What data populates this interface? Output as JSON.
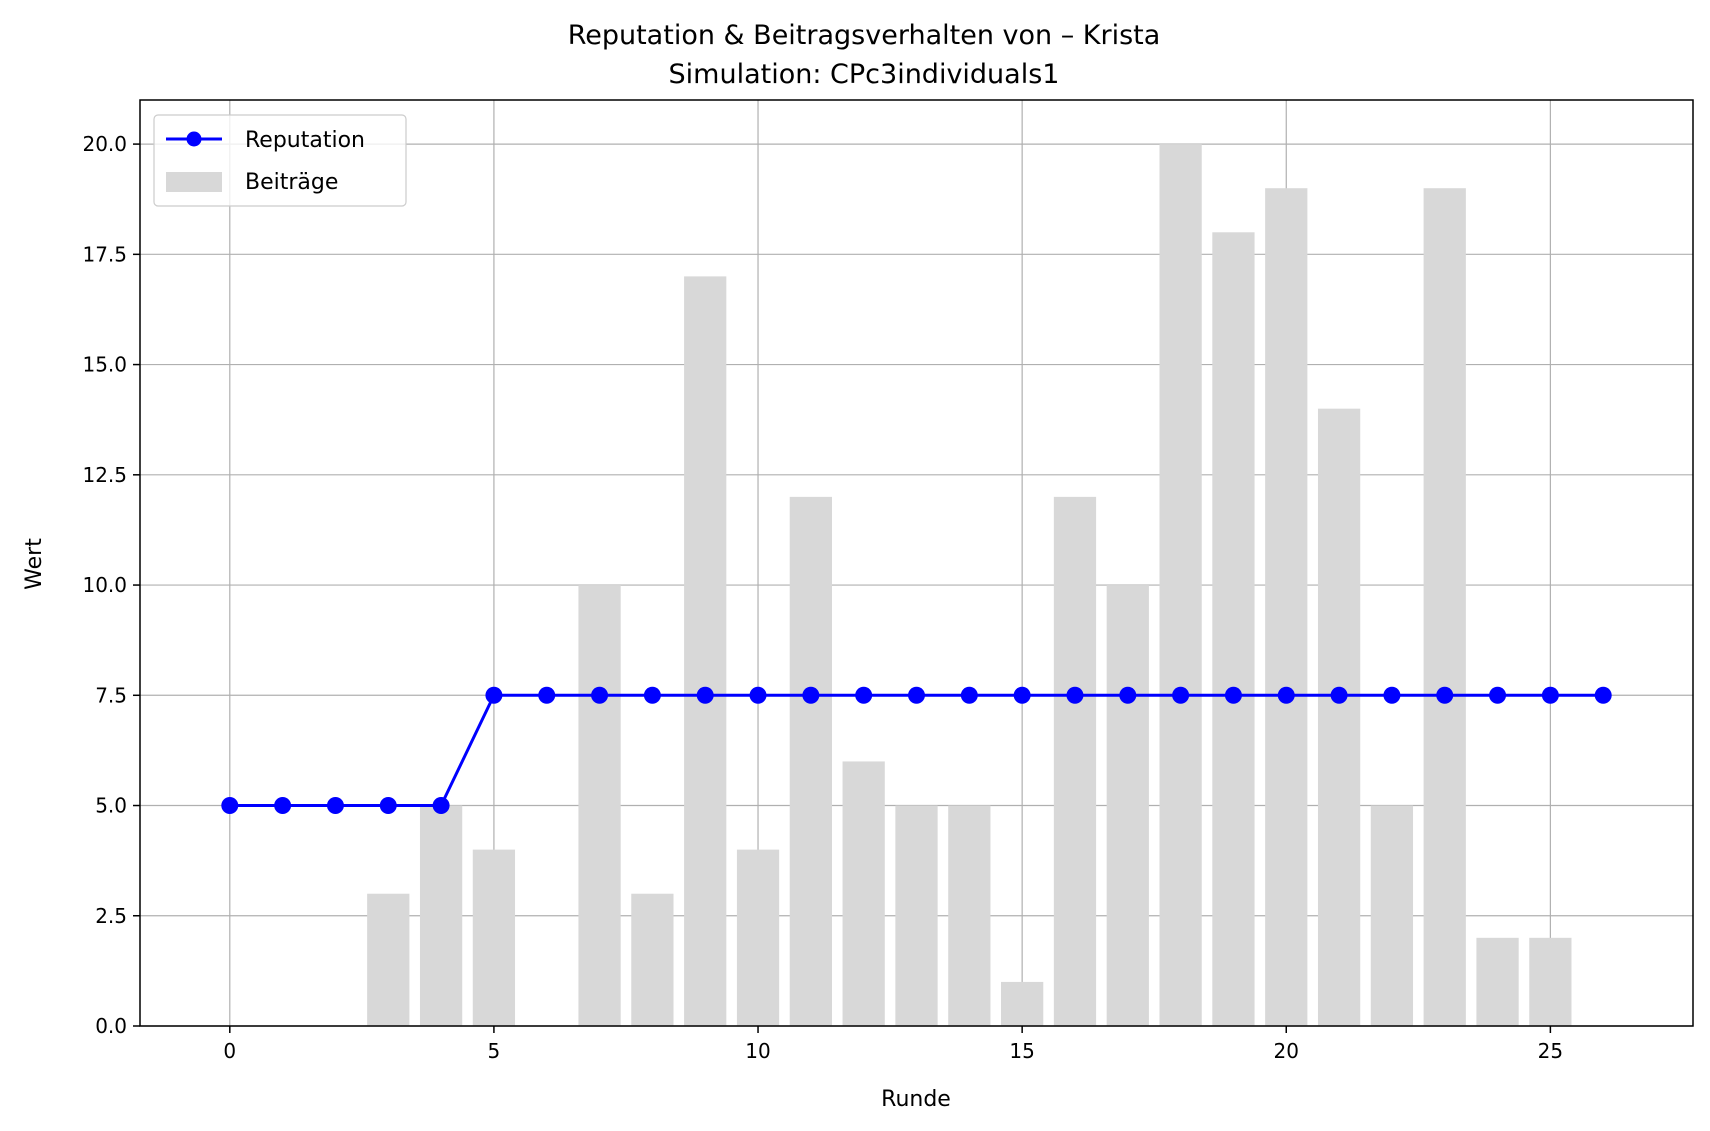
{
  "chart_data": {
    "type": "bar+line",
    "title": "Reputation & Beitragsverhalten von – Krista",
    "subtitle": "Simulation: CPc3individuals1",
    "xlabel": "Runde",
    "ylabel": "Wert",
    "xlim": [
      -1.7,
      27.7
    ],
    "ylim": [
      0,
      21
    ],
    "xticks": [
      0,
      5,
      10,
      15,
      20,
      25
    ],
    "yticks": [
      0,
      2.5,
      5,
      7.5,
      10,
      12.5,
      15,
      17.5,
      20
    ],
    "xtick_labels": [
      "0",
      "5",
      "10",
      "15",
      "20",
      "25"
    ],
    "ytick_labels": [
      "0.0",
      "2.5",
      "5.0",
      "7.5",
      "10.0",
      "12.5",
      "15.0",
      "17.5",
      "20.0"
    ],
    "grid": true,
    "legend_position": "top-left",
    "bars": {
      "name": "Beiträge",
      "color": "#d8d8d8",
      "x": [
        0,
        1,
        2,
        3,
        4,
        5,
        6,
        7,
        8,
        9,
        10,
        11,
        12,
        13,
        14,
        15,
        16,
        17,
        18,
        19,
        20,
        21,
        22,
        23,
        24,
        25,
        26
      ],
      "values": [
        0,
        0,
        0,
        3,
        5,
        4,
        0,
        10,
        3,
        17,
        4,
        12,
        6,
        5,
        5,
        1,
        12,
        10,
        20,
        18,
        19,
        14,
        5,
        19,
        2,
        2,
        0
      ]
    },
    "line": {
      "name": "Reputation",
      "color": "#0000ff",
      "x": [
        0,
        1,
        2,
        3,
        4,
        5,
        6,
        7,
        8,
        9,
        10,
        11,
        12,
        13,
        14,
        15,
        16,
        17,
        18,
        19,
        20,
        21,
        22,
        23,
        24,
        25,
        26
      ],
      "values": [
        5,
        5,
        5,
        5,
        5,
        7.5,
        7.5,
        7.5,
        7.5,
        7.5,
        7.5,
        7.5,
        7.5,
        7.5,
        7.5,
        7.5,
        7.5,
        7.5,
        7.5,
        7.5,
        7.5,
        7.5,
        7.5,
        7.5,
        7.5,
        7.5,
        7.5
      ]
    }
  }
}
